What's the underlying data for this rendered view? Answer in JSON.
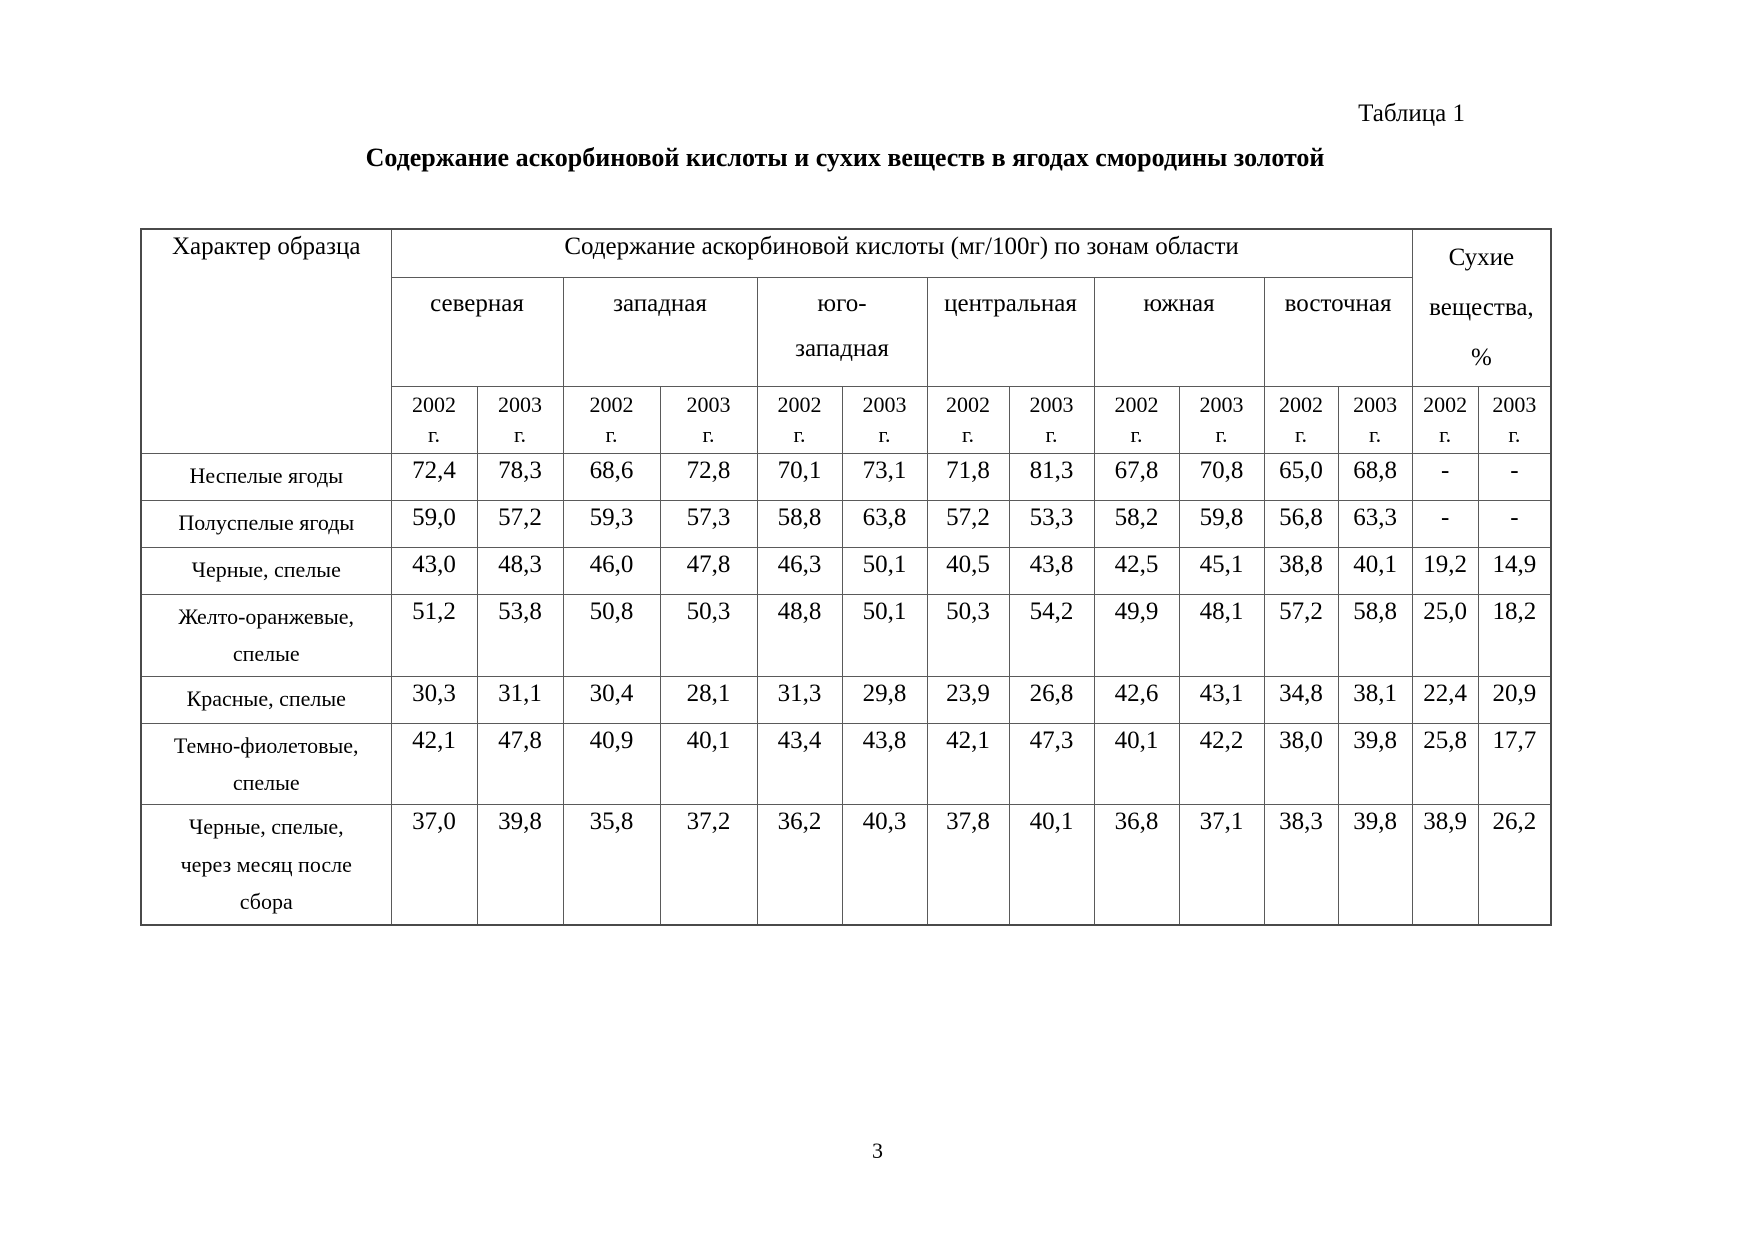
{
  "page": {
    "table_label": "Таблица 1",
    "title": "Содержание аскорбиновой кислоты и сухих веществ в ягодах смородины золотой",
    "page_number": "3"
  },
  "table": {
    "col1_header": "Характер образца",
    "main_header": "Содержание аскорбиновой кислоты (мг/100г) по зонам области",
    "dry_header": "Сухие\nвещества,\n%",
    "zones": [
      "северная",
      "западная",
      "юго-\nзападная",
      "центральная",
      "южная",
      "восточная"
    ],
    "years": [
      "2002",
      "2003"
    ],
    "year_suffix": "г.",
    "rows": [
      {
        "label": "Неспелые ягоды",
        "values": [
          "72,4",
          "78,3",
          "68,6",
          "72,8",
          "70,1",
          "73,1",
          "71,8",
          "81,3",
          "67,8",
          "70,8",
          "65,0",
          "68,8",
          "-",
          "-"
        ]
      },
      {
        "label": "Полуспелые ягоды",
        "values": [
          "59,0",
          "57,2",
          "59,3",
          "57,3",
          "58,8",
          "63,8",
          "57,2",
          "53,3",
          "58,2",
          "59,8",
          "56,8",
          "63,3",
          "-",
          "-"
        ]
      },
      {
        "label": "Черные, спелые",
        "values": [
          "43,0",
          "48,3",
          "46,0",
          "47,8",
          "46,3",
          "50,1",
          "40,5",
          "43,8",
          "42,5",
          "45,1",
          "38,8",
          "40,1",
          "19,2",
          "14,9"
        ]
      },
      {
        "label": "Желто-оранжевые,\nспелые",
        "values": [
          "51,2",
          "53,8",
          "50,8",
          "50,3",
          "48,8",
          "50,1",
          "50,3",
          "54,2",
          "49,9",
          "48,1",
          "57,2",
          "58,8",
          "25,0",
          "18,2"
        ]
      },
      {
        "label": "Красные, спелые",
        "values": [
          "30,3",
          "31,1",
          "30,4",
          "28,1",
          "31,3",
          "29,8",
          "23,9",
          "26,8",
          "42,6",
          "43,1",
          "34,8",
          "38,1",
          "22,4",
          "20,9"
        ]
      },
      {
        "label": "Темно-фиолетовые,\nспелые",
        "values": [
          "42,1",
          "47,8",
          "40,9",
          "40,1",
          "43,4",
          "43,8",
          "42,1",
          "47,3",
          "40,1",
          "42,2",
          "38,0",
          "39,8",
          "25,8",
          "17,7"
        ]
      },
      {
        "label": "Черные, спелые,\nчерез месяц после\nсбора",
        "values": [
          "37,0",
          "39,8",
          "35,8",
          "37,2",
          "36,2",
          "40,3",
          "37,8",
          "40,1",
          "36,8",
          "37,1",
          "38,3",
          "39,8",
          "38,9",
          "26,2"
        ]
      }
    ]
  }
}
